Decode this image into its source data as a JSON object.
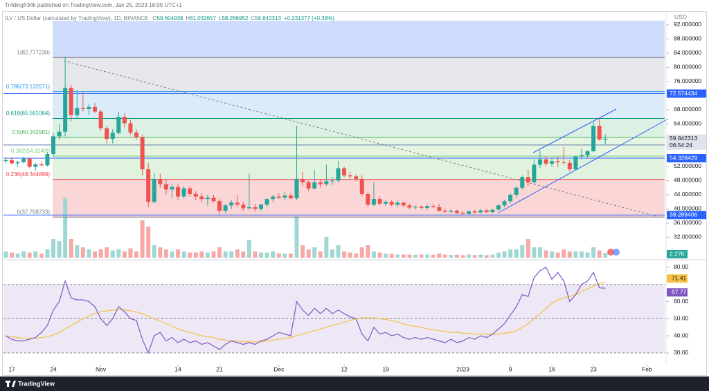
{
  "header": {
    "published": "Tr4dingfr34k published on TradingView.com, Jan 25, 2023 18:05 UTC+1"
  },
  "footer": {
    "brand": "TradingView"
  },
  "chart_data": {
    "type": "candlestick",
    "title": "ILV / US Dollar (calculated by TradingView), 1D, BINANCE",
    "legend_keys": [
      "O",
      "H",
      "L",
      "C"
    ],
    "change": "+0.231377 (+0.39%)",
    "currency": "USD",
    "countdown": "06:54:24",
    "colors": {
      "up": "#26a69a",
      "down": "#ef5350",
      "up_volume": "#9fd8d2",
      "down_volume": "#f6a9a7"
    },
    "ohlc": [
      [
        53.5,
        54.5,
        52.8,
        53.8
      ],
      [
        53.8,
        54.6,
        52.5,
        52.9
      ],
      [
        52.9,
        53.6,
        51.8,
        53.2
      ],
      [
        53.2,
        54.8,
        52.9,
        54.2
      ],
      [
        54.2,
        54.4,
        51.5,
        51.9
      ],
      [
        51.9,
        53.0,
        50.8,
        52.6
      ],
      [
        52.6,
        53.5,
        52.0,
        52.3
      ],
      [
        52.3,
        56.0,
        52.0,
        55.5
      ],
      [
        55.5,
        61.5,
        54.8,
        60.5
      ],
      [
        60.5,
        64.0,
        59.5,
        61.8
      ],
      [
        61.8,
        83.0,
        60.5,
        74.2
      ],
      [
        74.2,
        75.0,
        64.8,
        66.5
      ],
      [
        66.5,
        73.5,
        65.5,
        68.5
      ],
      [
        68.5,
        73.0,
        67.5,
        68.2
      ],
      [
        68.2,
        69.5,
        66.5,
        68.8
      ],
      [
        68.8,
        70.0,
        67.0,
        67.5
      ],
      [
        67.5,
        68.0,
        62.0,
        62.8
      ],
      [
        62.8,
        63.5,
        58.5,
        59.8
      ],
      [
        59.8,
        62.5,
        58.5,
        61.5
      ],
      [
        61.5,
        67.5,
        61.0,
        66.0
      ],
      [
        66.0,
        67.0,
        63.0,
        64.2
      ],
      [
        64.2,
        65.2,
        61.0,
        61.6
      ],
      [
        61.6,
        62.5,
        59.5,
        60.3
      ],
      [
        60.3,
        61.0,
        49.5,
        51.2
      ],
      [
        51.2,
        53.0,
        40.5,
        42.0
      ],
      [
        42.0,
        50.0,
        41.5,
        48.5
      ],
      [
        48.5,
        50.0,
        46.0,
        47.0
      ],
      [
        47.0,
        48.5,
        44.0,
        45.5
      ],
      [
        45.5,
        47.0,
        43.0,
        46.2
      ],
      [
        46.2,
        47.0,
        42.5,
        43.5
      ],
      [
        43.5,
        46.5,
        43.0,
        45.8
      ],
      [
        45.8,
        46.5,
        43.5,
        44.2
      ],
      [
        44.2,
        45.0,
        42.5,
        43.5
      ],
      [
        43.5,
        44.5,
        41.8,
        42.8
      ],
      [
        42.8,
        44.0,
        41.0,
        43.2
      ],
      [
        43.2,
        44.0,
        41.8,
        42.2
      ],
      [
        42.2,
        42.8,
        38.5,
        39.5
      ],
      [
        39.5,
        41.5,
        38.8,
        41.0
      ],
      [
        41.0,
        42.5,
        40.0,
        41.8
      ],
      [
        41.8,
        44.0,
        40.5,
        41.2
      ],
      [
        41.2,
        42.0,
        39.5,
        40.2
      ],
      [
        40.2,
        50.0,
        39.8,
        40.5
      ],
      [
        40.5,
        41.5,
        39.2,
        40.0
      ],
      [
        40.0,
        41.5,
        39.5,
        41.2
      ],
      [
        41.2,
        43.0,
        40.5,
        42.8
      ],
      [
        42.8,
        44.0,
        42.0,
        43.5
      ],
      [
        43.5,
        44.5,
        42.8,
        43.2
      ],
      [
        43.2,
        44.8,
        42.5,
        43.8
      ],
      [
        43.8,
        44.5,
        42.8,
        43.0
      ],
      [
        43.0,
        63.5,
        42.5,
        48.5
      ],
      [
        48.5,
        50.5,
        46.5,
        47.5
      ],
      [
        47.5,
        48.0,
        45.0,
        45.8
      ],
      [
        45.8,
        51.0,
        45.5,
        47.5
      ],
      [
        47.5,
        48.5,
        46.0,
        47.0
      ],
      [
        47.0,
        52.5,
        46.5,
        47.8
      ],
      [
        47.8,
        49.0,
        46.8,
        48.0
      ],
      [
        48.0,
        53.5,
        47.5,
        51.5
      ],
      [
        51.5,
        52.0,
        49.0,
        49.5
      ],
      [
        49.5,
        50.5,
        48.2,
        49.2
      ],
      [
        49.2,
        49.8,
        47.8,
        48.5
      ],
      [
        48.5,
        49.5,
        43.5,
        44.2
      ],
      [
        44.2,
        45.0,
        40.5,
        41.2
      ],
      [
        41.2,
        47.5,
        40.8,
        42.8
      ],
      [
        42.8,
        43.5,
        41.0,
        41.5
      ],
      [
        41.5,
        42.5,
        40.8,
        42.0
      ],
      [
        42.0,
        42.5,
        40.8,
        41.2
      ],
      [
        41.2,
        42.3,
        40.5,
        41.8
      ],
      [
        41.8,
        42.0,
        40.5,
        41.0
      ],
      [
        41.0,
        41.5,
        40.0,
        40.4
      ],
      [
        40.4,
        41.0,
        39.8,
        40.6
      ],
      [
        40.6,
        41.0,
        40.0,
        40.3
      ],
      [
        40.3,
        41.2,
        39.8,
        40.8
      ],
      [
        40.8,
        41.5,
        40.2,
        40.5
      ],
      [
        40.5,
        41.5,
        39.2,
        39.5
      ],
      [
        39.5,
        40.0,
        38.8,
        39.2
      ],
      [
        39.2,
        39.8,
        38.8,
        39.5
      ],
      [
        39.5,
        39.8,
        38.5,
        38.9
      ],
      [
        38.9,
        39.4,
        38.3,
        38.6
      ],
      [
        38.6,
        39.6,
        38.4,
        39.3
      ],
      [
        39.3,
        39.8,
        38.6,
        39.0
      ],
      [
        39.0,
        40.0,
        38.8,
        39.6
      ],
      [
        39.6,
        40.0,
        38.9,
        39.1
      ],
      [
        39.1,
        40.0,
        38.8,
        39.8
      ],
      [
        39.8,
        41.5,
        39.5,
        41.0
      ],
      [
        41.0,
        42.5,
        40.5,
        42.2
      ],
      [
        42.2,
        44.5,
        41.5,
        44.0
      ],
      [
        44.0,
        46.5,
        43.2,
        46.0
      ],
      [
        46.0,
        49.5,
        45.5,
        49.0
      ],
      [
        49.0,
        51.0,
        46.5,
        47.5
      ],
      [
        47.5,
        54.0,
        47.0,
        52.5
      ],
      [
        52.5,
        56.5,
        51.5,
        54.0
      ],
      [
        54.0,
        55.0,
        52.0,
        52.8
      ],
      [
        52.8,
        54.5,
        52.0,
        53.5
      ],
      [
        53.5,
        54.8,
        51.8,
        53.2
      ],
      [
        53.2,
        57.5,
        52.5,
        53.0
      ],
      [
        53.0,
        53.8,
        50.5,
        51.2
      ],
      [
        51.2,
        55.0,
        51.0,
        54.8
      ],
      [
        54.8,
        57.0,
        54.0,
        55.2
      ],
      [
        55.2,
        56.5,
        54.5,
        56.3
      ],
      [
        56.3,
        64.5,
        56.0,
        63.5
      ],
      [
        63.5,
        65.8,
        59.3,
        59.6
      ],
      [
        59.604938,
        61.032657,
        58.266952,
        59.842313
      ]
    ],
    "xlim": [
      -0.4,
      111
    ],
    "xticks": [
      {
        "value": 1,
        "label": "17"
      },
      {
        "value": 8,
        "label": "24"
      },
      {
        "value": 16,
        "label": "Nov"
      },
      {
        "value": 29,
        "label": "14"
      },
      {
        "value": 36,
        "label": "21"
      },
      {
        "value": 46,
        "label": "Dec"
      },
      {
        "value": 57,
        "label": "12"
      },
      {
        "value": 64,
        "label": "19"
      },
      {
        "value": 77,
        "label": "2023"
      },
      {
        "value": 85,
        "label": "9"
      },
      {
        "value": 92,
        "label": "16"
      },
      {
        "value": 99,
        "label": "23"
      },
      {
        "value": 108,
        "label": "Feb"
      }
    ],
    "ylim": [
      26.24,
      95.5
    ],
    "yticks": [
      {
        "value": 92,
        "label": "92.000000"
      },
      {
        "value": 88,
        "label": "88.000000"
      },
      {
        "value": 84,
        "label": "84.000000"
      },
      {
        "value": 80,
        "label": "80.000000"
      },
      {
        "value": 76,
        "label": "76.000000"
      },
      {
        "value": 68,
        "label": "68.000000"
      },
      {
        "value": 64,
        "label": "64.000000"
      },
      {
        "value": 52,
        "label": "52.000000"
      },
      {
        "value": 48,
        "label": "48.000000"
      },
      {
        "value": 44,
        "label": "44.000000"
      },
      {
        "value": 40,
        "label": "40.000000"
      },
      {
        "value": 36,
        "label": "36.000000"
      },
      {
        "value": 32,
        "label": "32.000000"
      }
    ],
    "price_lines": [
      {
        "value": 72.574434,
        "color": "#2962ff"
      },
      {
        "value": 58.060566,
        "color": "#5d7ba8"
      },
      {
        "value": 54.328429,
        "color": "#2962ff"
      },
      {
        "value": 38.289406,
        "color": "#2962ff"
      }
    ],
    "fib": {
      "levels": [
        82.77723,
        73.132571,
        65.561064,
        60.242981,
        54.92489,
        48.344898,
        37.708733
      ],
      "labels": [
        "1(82.777230)",
        "0.786(73.132571)",
        "0.618(65.561064)",
        "0.5(60.242981)",
        "0.382(54.92489",
        "0.236(48.344898)",
        "0(37.708733)"
      ],
      "colors": [
        "#787b86",
        "#2196f3",
        "#089981",
        "#4caf50",
        "#81c784",
        "#f23645",
        "#787b86"
      ],
      "zone_colors": [
        "#e6e7ea",
        "#dcebf8",
        "#dcf0e4",
        "#e6f4e2",
        "#e1f2de",
        "#fbd6d6"
      ]
    },
    "volume": {
      "values": [
        3,
        2.5,
        2,
        3,
        2.5,
        3,
        2,
        4,
        9,
        8,
        29,
        9,
        6,
        5,
        4,
        3,
        4,
        5,
        3.5,
        4,
        3,
        4.5,
        3,
        18,
        15,
        6,
        5,
        4,
        3,
        4,
        3,
        2.5,
        2.5,
        3,
        2.5,
        3,
        5,
        3,
        3,
        4,
        3,
        8.5,
        3,
        2.5,
        2.5,
        3,
        2,
        2,
        2,
        20,
        6,
        4,
        5,
        3,
        10,
        4,
        6,
        3,
        2.5,
        2,
        5,
        6,
        3,
        2.5,
        2,
        1.8,
        1.5,
        1.5,
        1.5,
        1.4,
        1.5,
        1.5,
        1.4,
        2,
        1.5,
        1.3,
        1.4,
        1.2,
        1.5,
        1.3,
        1.5,
        1.2,
        1.5,
        2.5,
        3,
        4,
        4,
        6,
        9,
        5,
        5,
        3.5,
        3,
        2.5,
        4,
        3,
        3,
        3,
        2.5,
        5,
        3.5,
        2.27
      ],
      "ylim": [
        0,
        30
      ],
      "last_label": "2.27K"
    },
    "rsi": {
      "values": [
        40,
        38,
        37,
        37,
        38,
        39,
        42,
        46,
        55,
        60,
        72,
        62,
        61,
        61,
        60,
        57,
        50,
        46,
        50,
        57,
        54,
        50,
        49,
        38,
        30,
        40,
        42,
        37,
        39,
        36,
        38,
        36,
        37,
        35,
        36,
        34,
        32,
        35,
        37,
        36,
        35,
        36,
        35,
        37,
        38,
        40,
        42,
        41,
        40,
        60,
        55,
        52,
        56,
        53,
        56,
        53,
        55,
        53,
        51,
        50,
        41,
        37,
        45,
        41,
        42,
        40,
        41,
        39,
        38,
        39,
        38,
        39,
        38,
        37,
        36,
        38,
        36,
        37,
        39,
        38,
        40,
        39,
        41,
        44,
        47,
        52,
        57,
        64,
        63,
        74,
        78,
        80,
        73,
        77,
        72,
        60,
        64,
        70,
        72,
        77,
        68,
        67.77
      ],
      "ma": [
        40,
        39.5,
        39,
        38.5,
        38.5,
        38.5,
        39,
        39.5,
        40.5,
        42,
        44,
        46,
        48,
        50,
        51.5,
        53,
        54,
        54.5,
        55,
        55.5,
        55,
        54.5,
        54,
        53,
        51.5,
        50,
        48.5,
        47,
        45.5,
        44,
        43,
        42,
        41,
        40,
        39.5,
        39,
        38,
        37.5,
        37,
        37,
        36.5,
        36.5,
        36.5,
        36.5,
        37,
        37.5,
        38,
        38.5,
        39,
        40,
        41,
        42,
        43,
        44,
        45,
        46,
        47,
        48,
        49,
        50,
        50.5,
        50.5,
        50.5,
        50,
        49.5,
        49,
        48,
        47,
        46,
        45.5,
        45,
        44,
        43.5,
        43,
        42.5,
        42,
        42,
        41.5,
        41.5,
        41,
        41,
        41,
        41,
        41,
        41.5,
        42,
        43,
        45,
        47,
        50,
        53,
        56,
        59,
        61,
        62,
        63,
        64,
        66,
        67.5,
        69,
        70.5,
        71.41
      ],
      "ylim": [
        23.1,
        84
      ],
      "yticks": [
        {
          "value": 80,
          "label": "80.00"
        },
        {
          "value": 60,
          "label": "60.00"
        },
        {
          "value": 50,
          "label": "50.00"
        },
        {
          "value": 40,
          "label": "40.00"
        },
        {
          "value": 30,
          "label": "30.00"
        }
      ],
      "levels": [
        70,
        50,
        30
      ],
      "color": "#7e57c2",
      "ma_color": "#f5c242",
      "band_color": "#ede7f6"
    }
  }
}
